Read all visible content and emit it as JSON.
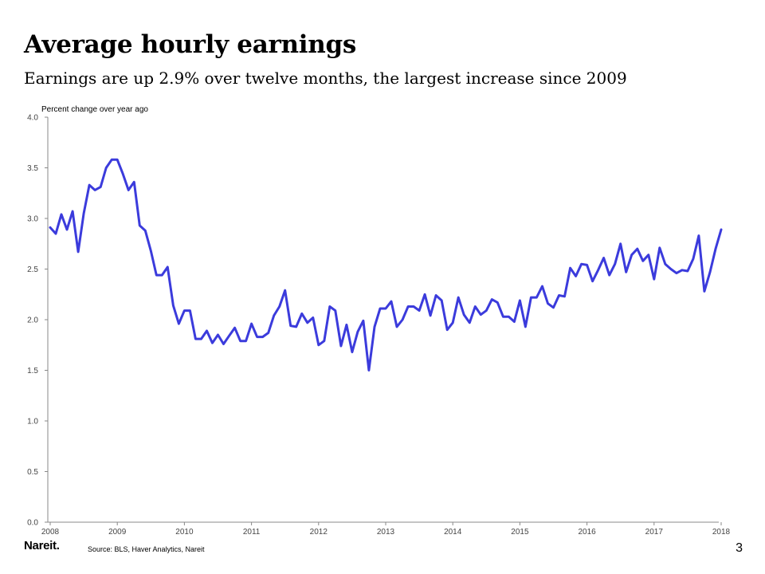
{
  "slide": {
    "title": "Average hourly earnings",
    "subtitle": "Earnings are up 2.9% over twelve months, the largest increase since 2009",
    "source": "Source: BLS, Haver Analytics, Nareit",
    "logo": "Nareit.",
    "page_number": "3"
  },
  "chart_data": {
    "type": "line",
    "ylabel": "Percent change over year ago",
    "xlabel": "",
    "ylim": [
      0,
      4.0
    ],
    "yticks": [
      "0.0",
      "0.5",
      "1.0",
      "1.5",
      "2.0",
      "2.5",
      "3.0",
      "3.5",
      "4.0"
    ],
    "xticks": [
      "2008",
      "2009",
      "2010",
      "2011",
      "2012",
      "2013",
      "2014",
      "2015",
      "2016",
      "2017",
      "2018"
    ],
    "x_start": "2008-01",
    "x_frequency": "monthly",
    "grid": false,
    "line_color": "#3b3bdc",
    "series": [
      {
        "values": [
          2.91,
          2.85,
          3.04,
          2.89,
          3.07,
          2.67,
          3.05,
          3.33,
          3.28,
          3.31,
          3.5,
          3.58,
          3.58,
          3.44,
          3.28,
          3.36,
          2.93,
          2.88,
          2.68,
          2.44,
          2.44,
          2.52,
          2.14,
          1.96,
          2.09,
          2.09,
          1.81,
          1.81,
          1.89,
          1.77,
          1.85,
          1.76,
          1.84,
          1.92,
          1.79,
          1.79,
          1.96,
          1.83,
          1.83,
          1.87,
          2.04,
          2.13,
          2.29,
          1.94,
          1.93,
          2.06,
          1.97,
          2.02,
          1.75,
          1.79,
          2.13,
          2.09,
          1.74,
          1.95,
          1.68,
          1.88,
          1.99,
          1.5,
          1.93,
          2.11,
          2.11,
          2.18,
          1.93,
          2.0,
          2.13,
          2.13,
          2.09,
          2.25,
          2.04,
          2.24,
          2.19,
          1.9,
          1.97,
          2.22,
          2.05,
          1.97,
          2.13,
          2.05,
          2.09,
          2.2,
          2.17,
          2.03,
          2.03,
          1.98,
          2.19,
          1.93,
          2.22,
          2.22,
          2.33,
          2.16,
          2.12,
          2.24,
          2.23,
          2.51,
          2.43,
          2.55,
          2.54,
          2.38,
          2.49,
          2.61,
          2.44,
          2.55,
          2.75,
          2.47,
          2.64,
          2.7,
          2.58,
          2.64,
          2.4,
          2.71,
          2.55,
          2.5,
          2.46,
          2.49,
          2.48,
          2.6,
          2.83,
          2.28,
          2.47,
          2.7,
          2.89
        ]
      }
    ]
  }
}
